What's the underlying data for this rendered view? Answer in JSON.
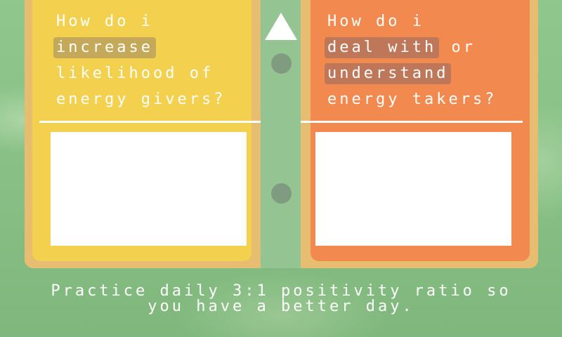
{
  "left_card": {
    "question_line1": "How do i",
    "question_highlight": "increase",
    "question_line3": "likelihood of",
    "question_line4": "energy givers?",
    "answer_value": ""
  },
  "right_card": {
    "question_line1": "How do i",
    "question_highlight1": "deal with",
    "question_or": " or",
    "question_highlight2": "understand",
    "question_line4": "energy takers?",
    "answer_value": ""
  },
  "footer": {
    "line1": "Practice daily 3:1 positivity ratio so",
    "line2": "you have a better day."
  },
  "icons": {
    "up": "arrow-up-icon",
    "ring_top": "binder-ring-icon",
    "ring_bottom": "binder-ring-icon"
  },
  "colors": {
    "left_card": "#f3d04d",
    "right_card": "#f28a4f",
    "board": "#e7bd72",
    "spine": "#95c493",
    "background": "#8fc78c"
  }
}
